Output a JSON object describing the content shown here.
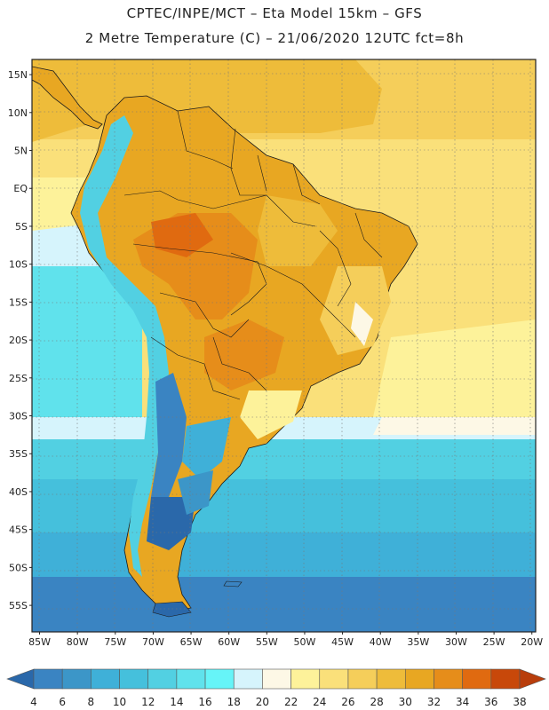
{
  "header": {
    "title_line1": "CPTEC/INPE/MCT –  Eta Model 15km – GFS",
    "title_line2": "2 Metre Temperature (C) – 21/06/2020 12UTC fct=8h"
  },
  "map": {
    "lat_ticks": [
      {
        "value": 15,
        "label": "15N"
      },
      {
        "value": 10,
        "label": "10N"
      },
      {
        "value": 5,
        "label": "5N"
      },
      {
        "value": 0,
        "label": "EQ"
      },
      {
        "value": -5,
        "label": "5S"
      },
      {
        "value": -10,
        "label": "10S"
      },
      {
        "value": -15,
        "label": "15S"
      },
      {
        "value": -20,
        "label": "20S"
      },
      {
        "value": -25,
        "label": "25S"
      },
      {
        "value": -30,
        "label": "30S"
      },
      {
        "value": -35,
        "label": "35S"
      },
      {
        "value": -40,
        "label": "40S"
      },
      {
        "value": -45,
        "label": "45S"
      },
      {
        "value": -50,
        "label": "50S"
      },
      {
        "value": -55,
        "label": "55S"
      }
    ],
    "lon_ticks": [
      {
        "value": -85,
        "label": "85W"
      },
      {
        "value": -80,
        "label": "80W"
      },
      {
        "value": -75,
        "label": "75W"
      },
      {
        "value": -70,
        "label": "70W"
      },
      {
        "value": -65,
        "label": "65W"
      },
      {
        "value": -60,
        "label": "60W"
      },
      {
        "value": -55,
        "label": "55W"
      },
      {
        "value": -50,
        "label": "50W"
      },
      {
        "value": -45,
        "label": "45W"
      },
      {
        "value": -40,
        "label": "40W"
      },
      {
        "value": -35,
        "label": "35W"
      },
      {
        "value": -30,
        "label": "30W"
      },
      {
        "value": -25,
        "label": "25W"
      },
      {
        "value": -20,
        "label": "20W"
      }
    ],
    "lon_range": [
      -86,
      -19.5
    ],
    "lat_range": [
      -58.5,
      17
    ]
  },
  "colorbar": {
    "labels": [
      "4",
      "6",
      "8",
      "10",
      "12",
      "14",
      "16",
      "18",
      "20",
      "22",
      "24",
      "26",
      "28",
      "30",
      "32",
      "34",
      "36",
      "38"
    ],
    "colors": [
      "#2a68aa",
      "#3a84c2",
      "#3c96c8",
      "#3fb0d8",
      "#45c0dc",
      "#52d0e2",
      "#60e2ec",
      "#66f4f8",
      "#d6f4fc",
      "#fdf8e6",
      "#fdf29a",
      "#fae07a",
      "#f5ce5a",
      "#eebc3a",
      "#e8a722",
      "#e68d1a",
      "#e06a10",
      "#c8480a",
      "#b83d0b"
    ]
  }
}
